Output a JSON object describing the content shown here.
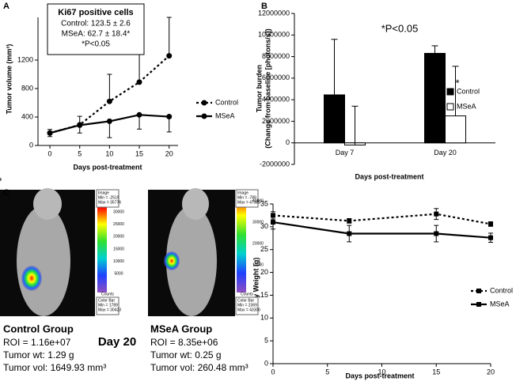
{
  "chart_data": [
    {
      "panel": "A",
      "type": "line",
      "x": [
        0,
        5,
        10,
        15,
        20
      ],
      "series": [
        {
          "name": "Control",
          "color": "#000000",
          "dash": "dotted",
          "marker": "circle",
          "error_side": "up",
          "values": [
            175,
            290,
            620,
            890,
            1260
          ],
          "errors": [
            50,
            120,
            380,
            440,
            540
          ]
        },
        {
          "name": "MSeA",
          "color": "#000000",
          "dash": "solid",
          "marker": "circle",
          "error_side": "down",
          "values": [
            175,
            285,
            340,
            430,
            405
          ],
          "errors": [
            50,
            110,
            230,
            200,
            215
          ]
        }
      ],
      "xlim": [
        -2,
        21.5
      ],
      "xticks": [
        0,
        5,
        10,
        15,
        20
      ],
      "ylim": [
        0,
        1800
      ],
      "yticks": [
        0,
        400,
        800,
        1200
      ],
      "x_label": "Days post-treatment",
      "y_label": [
        "Tumor volume (mm³)"
      ],
      "annotations": [
        "*"
      ],
      "inset": {
        "title": "Ki67 positive cells",
        "lines": [
          "Control: 123.5 ± 2.6",
          "MSeA: 62.7 ± 18.4*",
          "*P<0.05"
        ]
      }
    },
    {
      "panel": "B",
      "type": "bar",
      "categories": [
        "Day 7",
        "Day 20"
      ],
      "series": [
        {
          "name": "Control",
          "color": "#000000",
          "error_side": "up",
          "values": [
            4450000,
            8300000
          ],
          "errors": [
            5150000,
            700000
          ]
        },
        {
          "name": "MSeA",
          "color": "#ffffff",
          "error_side": "up",
          "values": [
            -200000,
            2500000
          ],
          "errors": [
            3600000,
            4600000
          ]
        }
      ],
      "ylim": [
        -2000000,
        12000000
      ],
      "yticks": [
        -2000000,
        0,
        2000000,
        4000000,
        6000000,
        8000000,
        10000000,
        12000000
      ],
      "x_label": "Days post-treatment",
      "y_label": [
        "Tumor burden",
        "(Change from baseline [photons/s])"
      ],
      "annotations": [
        "*P<0.05",
        "*"
      ]
    },
    {
      "panel": "D",
      "type": "line",
      "x": [
        0,
        7,
        15,
        20
      ],
      "series": [
        {
          "name": "Control",
          "color": "#000000",
          "dash": "dotted",
          "marker": "square",
          "error_side": "both",
          "values": [
            32.5,
            31.3,
            32.8,
            30.6
          ],
          "errors": [
            0.8,
            0.5,
            1.2,
            0.5
          ]
        },
        {
          "name": "MSeA",
          "color": "#000000",
          "dash": "solid",
          "marker": "square",
          "error_side": "both",
          "values": [
            31.0,
            28.5,
            28.5,
            27.6
          ],
          "errors": [
            1.5,
            1.8,
            1.8,
            1.0
          ]
        }
      ],
      "xlim": [
        0,
        20
      ],
      "xticks": [
        0,
        5,
        10,
        15,
        20
      ],
      "ylim": [
        0,
        35
      ],
      "yticks": [
        0,
        5,
        10,
        15,
        20,
        25,
        30,
        35
      ],
      "x_label": "Days post-treatment",
      "y_label": [
        "Body Weight (g)"
      ],
      "annotations": []
    }
  ],
  "panel_c": {
    "panel": "C",
    "day": "Day 20",
    "groups": [
      {
        "name": "Control Group",
        "roi": "ROI = 1.16e+07",
        "wt": "Tumor wt: 1.29 g",
        "vol": "Tumor vol: 1649.93 mm³",
        "image_info": [
          "Image",
          "Min = -2519",
          "Max = 35776"
        ],
        "colorbar_info": [
          "Color Bar",
          "Min = 1789",
          "Max = 30423"
        ],
        "colorbar_ticks": [
          30000,
          25000,
          20000,
          15000,
          10000,
          5000
        ],
        "colorbar_unit": "Counts"
      },
      {
        "name": "MSeA Group",
        "roi": "ROI = 8.35e+06",
        "wt": "Tumor wt: 0.25 g",
        "vol": "Tumor vol: 260.48 mm³",
        "image_info": [
          "Image",
          "Min = -789",
          "Max = 47385"
        ],
        "colorbar_info": [
          "Color Bar",
          "Min = 2369",
          "Max = 43306"
        ],
        "colorbar_ticks": [
          40000,
          30000,
          20000,
          10000
        ],
        "colorbar_unit": "Counts"
      }
    ]
  }
}
